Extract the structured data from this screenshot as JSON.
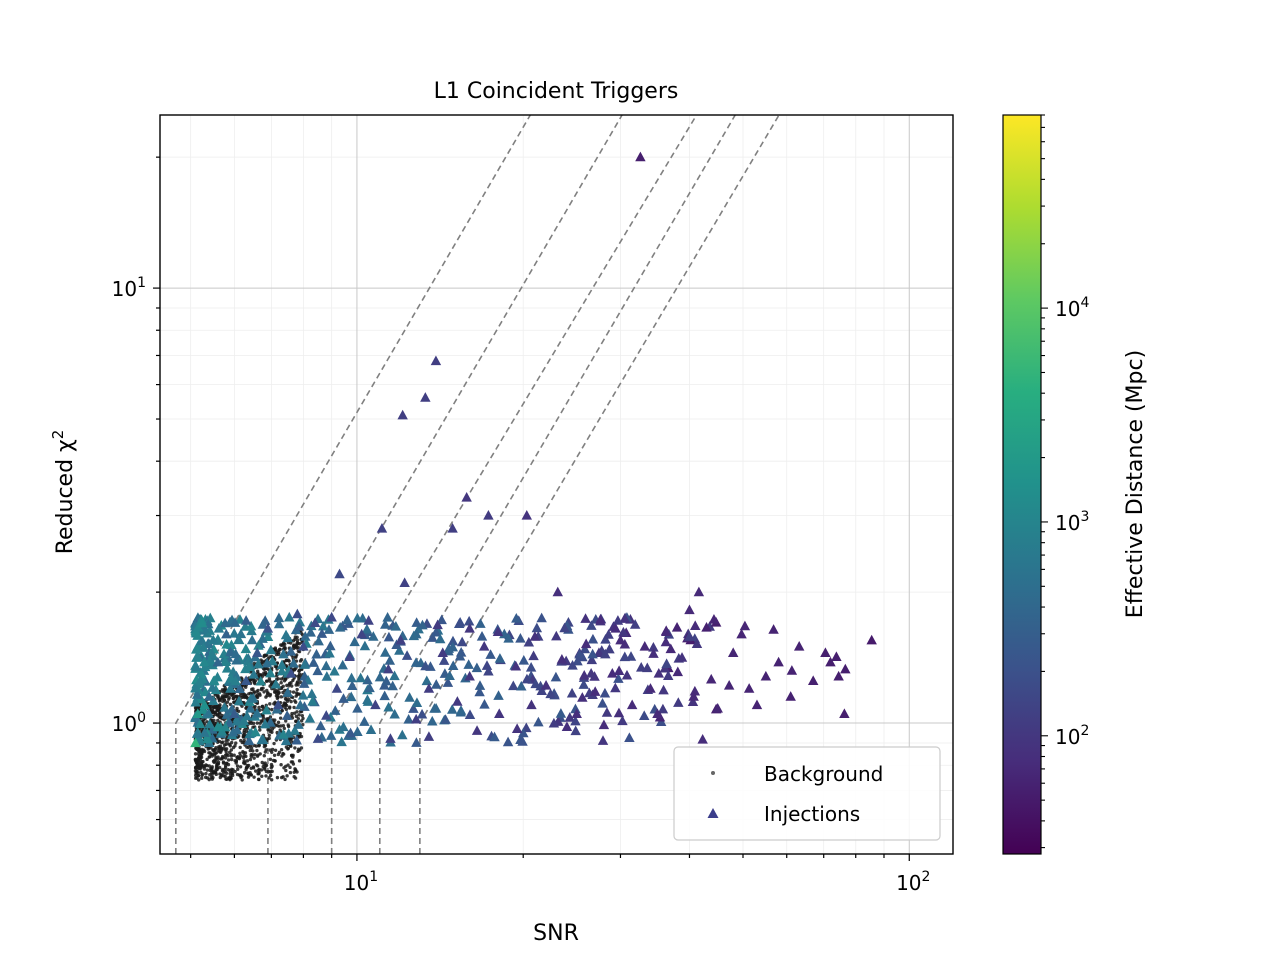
{
  "chart_data": {
    "type": "scatter",
    "title": "L1 Coincident Triggers",
    "xlabel": "SNR",
    "ylabel": "Reduced χ",
    "ylabel_superscript": "2",
    "xscale": "log",
    "yscale": "log",
    "xlim": [
      4.4,
      120
    ],
    "ylim": [
      0.5,
      25
    ],
    "x_ticks": [
      {
        "base": "10",
        "exp": "1",
        "value": 10
      },
      {
        "base": "10",
        "exp": "2",
        "value": 100
      }
    ],
    "y_ticks": [
      {
        "base": "10",
        "exp": "0",
        "value": 1
      },
      {
        "base": "10",
        "exp": "1",
        "value": 10
      }
    ],
    "grid": true,
    "legend_position": "lower-right",
    "legend": {
      "background_label": "Background",
      "injections_label": "Injections"
    },
    "colorbar": {
      "label": "Effective Distance (Mpc)",
      "scale": "log",
      "range": [
        28,
        80000
      ],
      "colormap": "viridis",
      "ticks": [
        {
          "base": "10",
          "exp": "2",
          "value": 100
        },
        {
          "base": "10",
          "exp": "3",
          "value": 1000
        },
        {
          "base": "10",
          "exp": "4",
          "value": 10000
        }
      ]
    },
    "contour_lines": {
      "style": "dashed",
      "color": "#808080",
      "snr_threshold_starts": [
        4.7,
        6.9,
        9.0,
        11.0,
        13.0
      ],
      "lines_end_snr_at_ymax": [
        20.6,
        30.2,
        41.2,
        48.4,
        58.1
      ]
    },
    "series": [
      {
        "name": "Background",
        "marker": "dot",
        "color": "#222222",
        "summary": "dense cluster of ~thousands of points, SNR 5.1–8.0, reduced chi2 0.72–1.75"
      },
      {
        "name": "Injections",
        "marker": "triangle",
        "color_by": "Effective Distance (Mpc)",
        "points": [
          [
            32.6,
            20.0,
            55
          ],
          [
            13.9,
            6.8,
            120
          ],
          [
            13.3,
            5.6,
            120
          ],
          [
            12.1,
            5.1,
            120
          ],
          [
            15.8,
            3.3,
            100
          ],
          [
            17.3,
            3.0,
            110
          ],
          [
            20.3,
            3.0,
            90
          ],
          [
            14.9,
            2.8,
            120
          ],
          [
            11.1,
            2.8,
            130
          ],
          [
            9.3,
            2.2,
            160
          ],
          [
            12.2,
            2.1,
            130
          ],
          [
            23.1,
            2.0,
            80
          ],
          [
            41.6,
            2.0,
            70
          ],
          [
            44.3,
            1.73,
            65
          ],
          [
            27.6,
            1.73,
            75
          ],
          [
            40.0,
            1.82,
            70
          ],
          [
            36.3,
            1.62,
            70
          ],
          [
            29.4,
            1.65,
            75
          ],
          [
            33.2,
            1.5,
            70
          ],
          [
            50.4,
            1.67,
            65
          ],
          [
            49.7,
            1.6,
            65
          ],
          [
            56.8,
            1.64,
            60
          ],
          [
            63.2,
            1.5,
            60
          ],
          [
            70.5,
            1.45,
            55
          ],
          [
            73.8,
            1.42,
            55
          ],
          [
            76.6,
            1.33,
            55
          ],
          [
            74.5,
            1.28,
            55
          ],
          [
            85.5,
            1.55,
            50
          ],
          [
            76.3,
            1.05,
            55
          ],
          [
            61.3,
            1.32,
            60
          ],
          [
            55.0,
            1.28,
            60
          ],
          [
            51.3,
            1.2,
            62
          ],
          [
            47.2,
            1.22,
            64
          ],
          [
            43.8,
            1.26,
            66
          ],
          [
            40.7,
            1.15,
            68
          ],
          [
            38.1,
            1.31,
            70
          ],
          [
            34.0,
            1.2,
            72
          ],
          [
            31.5,
            1.1,
            74
          ],
          [
            29.0,
            1.3,
            76
          ],
          [
            27.0,
            1.18,
            78
          ],
          [
            25.0,
            1.05,
            80
          ],
          [
            23.5,
            1.4,
            82
          ],
          [
            22.0,
            1.22,
            85
          ],
          [
            20.7,
            1.1,
            88
          ],
          [
            19.4,
            1.35,
            90
          ],
          [
            18.1,
            1.05,
            95
          ],
          [
            17.0,
            1.5,
            98
          ],
          [
            16.0,
            1.28,
            100
          ],
          [
            15.2,
            1.12,
            105
          ],
          [
            14.3,
            1.45,
            110
          ],
          [
            13.5,
            1.2,
            115
          ],
          [
            12.8,
            1.02,
            120
          ],
          [
            12.0,
            1.55,
            125
          ],
          [
            11.4,
            1.33,
            130
          ],
          [
            10.8,
            1.1,
            135
          ],
          [
            10.2,
            1.6,
            140
          ],
          [
            9.7,
            1.42,
            150
          ],
          [
            9.2,
            1.2,
            155
          ],
          [
            8.8,
            1.04,
            160
          ],
          [
            8.4,
            1.7,
            170
          ],
          [
            8.0,
            1.5,
            180
          ],
          [
            7.6,
            1.3,
            190
          ],
          [
            7.2,
            1.1,
            200
          ],
          [
            6.9,
            1.65,
            210
          ],
          [
            6.6,
            1.45,
            230
          ],
          [
            6.3,
            1.25,
            250
          ],
          [
            6.0,
            1.05,
            280
          ],
          [
            5.8,
            1.6,
            320
          ],
          [
            5.6,
            1.38,
            380
          ],
          [
            5.4,
            1.15,
            450
          ],
          [
            5.3,
            0.95,
            600
          ],
          [
            5.2,
            1.25,
            900
          ],
          [
            5.15,
            1.05,
            2000
          ],
          [
            5.1,
            0.9,
            5000
          ],
          [
            6.3,
            1.72,
            300
          ],
          [
            5.9,
            1.2,
            700
          ],
          [
            5.3,
            1.1,
            1500
          ],
          [
            5.6,
            0.98,
            1200
          ],
          [
            8.5,
            0.92,
            170
          ],
          [
            11.5,
            0.92,
            130
          ],
          [
            13.5,
            0.93,
            120
          ],
          [
            16.5,
            0.96,
            100
          ],
          [
            19.5,
            0.97,
            92
          ],
          [
            24.0,
            0.98,
            80
          ],
          [
            28.0,
            0.99,
            76
          ],
          [
            35.0,
            1.05,
            70
          ],
          [
            45.0,
            1.08,
            64
          ],
          [
            53.0,
            1.1,
            60
          ],
          [
            61.0,
            1.15,
            58
          ],
          [
            67.0,
            1.25,
            56
          ],
          [
            72.0,
            1.38,
            55
          ],
          [
            58.0,
            1.38,
            60
          ],
          [
            48.0,
            1.45,
            64
          ],
          [
            37.0,
            1.48,
            70
          ],
          [
            30.0,
            1.55,
            74
          ],
          [
            26.0,
            1.52,
            78
          ],
          [
            21.0,
            1.58,
            86
          ],
          [
            18.0,
            1.62,
            95
          ],
          [
            16.0,
            1.65,
            100
          ],
          [
            14.0,
            1.68,
            110
          ],
          [
            10.5,
            1.72,
            140
          ],
          [
            9.0,
            1.75,
            155
          ],
          [
            7.8,
            1.78,
            185
          ]
        ]
      }
    ]
  }
}
